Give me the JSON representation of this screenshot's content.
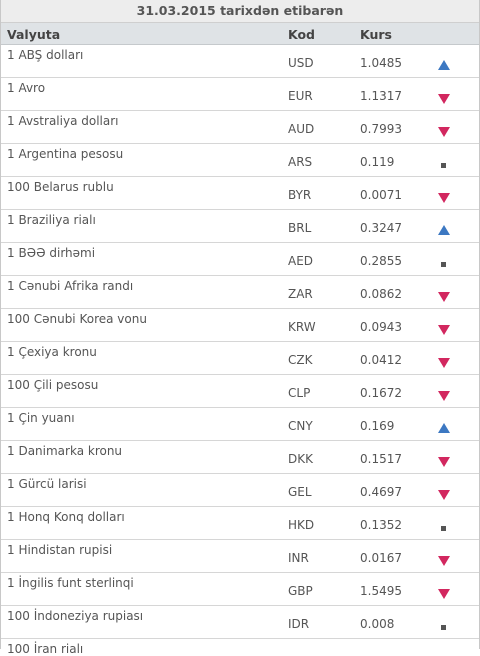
{
  "title": "31.03.2015 tarixdən etibarən",
  "columns": {
    "currency": "Valyuta",
    "code": "Kod",
    "rate": "Kurs"
  },
  "colors": {
    "up": "#3c78c2",
    "down": "#d2275f",
    "same": "#555555"
  },
  "rows": [
    {
      "name": "1 ABŞ dolları",
      "code": "USD",
      "rate": "1.0485",
      "trend": "up-arrow-icon"
    },
    {
      "name": "1 Avro",
      "code": "EUR",
      "rate": "1.1317",
      "trend": "down-arrow-icon"
    },
    {
      "name": "1 Avstraliya dolları",
      "code": "AUD",
      "rate": "0.7993",
      "trend": "down-arrow-icon"
    },
    {
      "name": "1 Argentina pesosu",
      "code": "ARS",
      "rate": "0.119",
      "trend": "no-change-icon"
    },
    {
      "name": "100 Belarus rublu",
      "code": "BYR",
      "rate": "0.0071",
      "trend": "down-arrow-icon"
    },
    {
      "name": "1 Braziliya rialı",
      "code": "BRL",
      "rate": "0.3247",
      "trend": "up-arrow-icon"
    },
    {
      "name": "1 BƏƏ dirhəmi",
      "code": "AED",
      "rate": "0.2855",
      "trend": "no-change-icon"
    },
    {
      "name": "1 Cənubi Afrika randı",
      "code": "ZAR",
      "rate": "0.0862",
      "trend": "down-arrow-icon"
    },
    {
      "name": "100 Cənubi Korea vonu",
      "code": "KRW",
      "rate": "0.0943",
      "trend": "down-arrow-icon"
    },
    {
      "name": "1 Çexiya kronu",
      "code": "CZK",
      "rate": "0.0412",
      "trend": "down-arrow-icon"
    },
    {
      "name": "100 Çili pesosu",
      "code": "CLP",
      "rate": "0.1672",
      "trend": "down-arrow-icon"
    },
    {
      "name": "1 Çin yuanı",
      "code": "CNY",
      "rate": "0.169",
      "trend": "up-arrow-icon"
    },
    {
      "name": "1 Danimarka kronu",
      "code": "DKK",
      "rate": "0.1517",
      "trend": "down-arrow-icon"
    },
    {
      "name": "1 Gürcü larisi",
      "code": "GEL",
      "rate": "0.4697",
      "trend": "down-arrow-icon"
    },
    {
      "name": "1 Honq Konq dolları",
      "code": "HKD",
      "rate": "0.1352",
      "trend": "no-change-icon"
    },
    {
      "name": "1 Hindistan rupisi",
      "code": "INR",
      "rate": "0.0167",
      "trend": "down-arrow-icon"
    },
    {
      "name": "1 İngilis funt sterlinqi",
      "code": "GBP",
      "rate": "1.5495",
      "trend": "down-arrow-icon"
    },
    {
      "name": "100 İndoneziya rupiası",
      "code": "IDR",
      "rate": "0.008",
      "trend": "no-change-icon"
    }
  ],
  "cut_row": {
    "name": "100 İran rialı"
  }
}
